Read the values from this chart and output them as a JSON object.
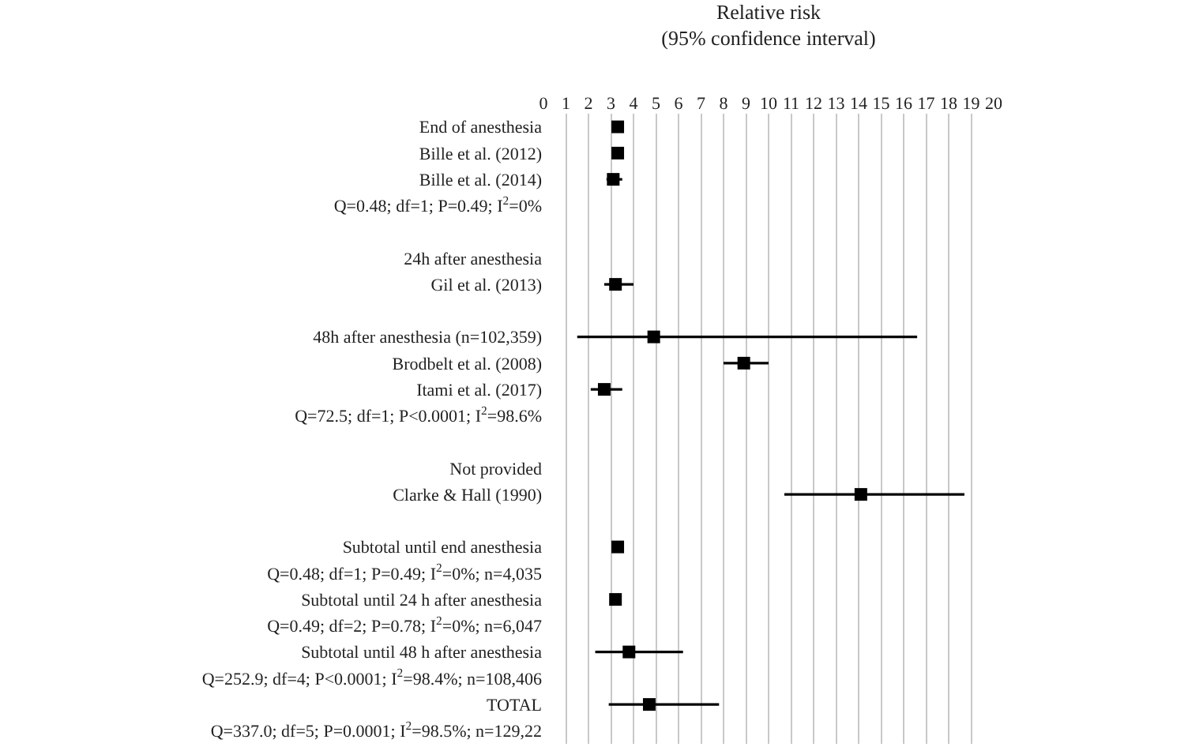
{
  "chart_data": {
    "type": "scatter",
    "orientation": "horizontal",
    "title": "Relative risk\n(95% confidence interval)",
    "categories": [
      "End of anesthesia",
      "Bille et al. (2012)",
      "Bille et al. (2014)",
      "Q=0.48; df=1; P=0.49; I$^{2}$=0%",
      null,
      "24h after anesthesia",
      "Gil et al. (2013)",
      null,
      "48h after anesthesia (n=102,359)",
      "Brodbelt et al. (2008)",
      "Itami et al. (2017)",
      "Q=72.5; df=1; P<0.0001; I$^{2}$=98.6%",
      null,
      "Not provided",
      "Clarke & Hall (1990)",
      null,
      "Subtotal until end anesthesia",
      "Q=0.48; df=1; P=0.49; I$^{2}$=0%; n=4,035",
      "Subtotal until 24 h after anesthesia",
      "Q=0.49; df=2; P=0.78; I$^{2}$=0%; n=6,047",
      "Subtotal until 48 h after anesthesia",
      "Q=252.9; df=4; P<0.0001; I$^{2}$=98.4%; n=108,406",
      "TOTAL",
      "Q=337.0; df=5; P=0.0001; I$^{2}$=98.5%; n=129,22"
    ],
    "series": [
      {
        "color": "#000000",
        "values": [
          3.3,
          3.3,
          3.1,
          null,
          null,
          null,
          3.2,
          null,
          4.9,
          8.9,
          2.7,
          null,
          null,
          null,
          14.1,
          null,
          3.3,
          null,
          3.2,
          null,
          3.8,
          null,
          4.7,
          null
        ],
        "errors": [
          null,
          [
            3.1,
            3.5
          ],
          [
            2.8,
            3.5
          ],
          null,
          null,
          null,
          [
            2.7,
            4.0
          ],
          null,
          [
            1.5,
            16.6
          ],
          [
            8.0,
            10.0
          ],
          [
            2.1,
            3.5
          ],
          null,
          null,
          null,
          [
            10.7,
            18.7
          ],
          null,
          null,
          null,
          null,
          null,
          [
            2.3,
            6.2
          ],
          null,
          [
            2.9,
            7.8
          ],
          null
        ]
      }
    ],
    "xlim": [
      0,
      20
    ],
    "xticks": [
      0,
      1,
      2,
      3,
      4,
      5,
      6,
      7,
      8,
      9,
      10,
      11,
      12,
      13,
      14,
      15,
      16,
      17,
      18,
      19,
      20
    ],
    "grid": "x",
    "marker": "square"
  }
}
